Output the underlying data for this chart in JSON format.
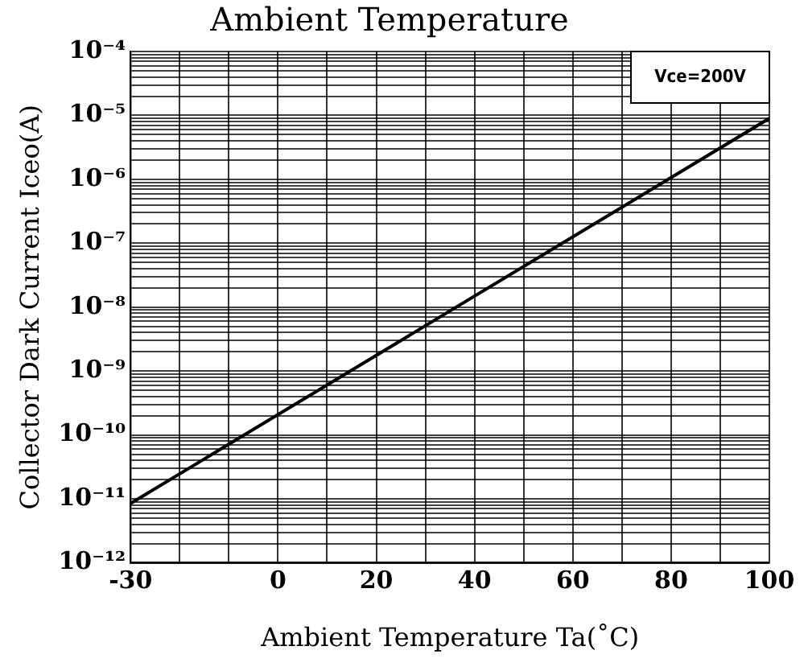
{
  "chart_data": {
    "type": "line",
    "title": "Ambient Temperature",
    "xlabel": "Ambient Temperature Ta(˚C)",
    "ylabel": "Collector Dark Current Iceo(A)",
    "annotations": [
      "Vce=200V"
    ],
    "x": [
      -30,
      100
    ],
    "series": [
      {
        "color": "#000000",
        "values": [
          8.5e-12,
          9e-06
        ]
      }
    ],
    "log": "y",
    "grid": true,
    "marker": "none",
    "line_style": "solid",
    "legend": false,
    "xlim": [
      -30,
      100
    ],
    "xticks": [
      -30,
      {
        "value": -20,
        "label": null
      },
      {
        "value": -10,
        "label": null
      },
      0,
      {
        "value": 10,
        "label": null
      },
      20,
      {
        "value": 30,
        "label": null
      },
      40,
      {
        "value": 50,
        "label": null
      },
      60,
      {
        "value": 70,
        "label": null
      },
      80,
      {
        "value": 90,
        "label": null
      },
      100
    ],
    "ylim": [
      1e-12,
      0.0001
    ],
    "yticks": [
      {
        "value": 1e-12,
        "label": "10⁻¹²"
      },
      {
        "value": 2e-12,
        "label": null
      },
      {
        "value": 3e-12,
        "label": null
      },
      {
        "value": 4e-12,
        "label": null
      },
      {
        "value": 5e-12,
        "label": null
      },
      {
        "value": 6e-12,
        "label": null
      },
      {
        "value": 7e-12,
        "label": null
      },
      {
        "value": 8e-12,
        "label": null
      },
      {
        "value": 9e-12,
        "label": null
      },
      {
        "value": 1e-11,
        "label": "10⁻¹¹"
      },
      {
        "value": 2e-11,
        "label": null
      },
      {
        "value": 3e-11,
        "label": null
      },
      {
        "value": 4e-11,
        "label": null
      },
      {
        "value": 5e-11,
        "label": null
      },
      {
        "value": 6e-11,
        "label": null
      },
      {
        "value": 7e-11,
        "label": null
      },
      {
        "value": 8e-11,
        "label": null
      },
      {
        "value": 9e-11,
        "label": null
      },
      {
        "value": 1e-10,
        "label": "10⁻¹⁰"
      },
      {
        "value": 2e-10,
        "label": null
      },
      {
        "value": 3e-10,
        "label": null
      },
      {
        "value": 4e-10,
        "label": null
      },
      {
        "value": 5e-10,
        "label": null
      },
      {
        "value": 6e-10,
        "label": null
      },
      {
        "value": 7e-10,
        "label": null
      },
      {
        "value": 8e-10,
        "label": null
      },
      {
        "value": 9e-10,
        "label": null
      },
      {
        "value": 1e-09,
        "label": "10⁻⁹"
      },
      {
        "value": 2e-09,
        "label": null
      },
      {
        "value": 3e-09,
        "label": null
      },
      {
        "value": 4e-09,
        "label": null
      },
      {
        "value": 5e-09,
        "label": null
      },
      {
        "value": 6e-09,
        "label": null
      },
      {
        "value": 7e-09,
        "label": null
      },
      {
        "value": 8e-09,
        "label": null
      },
      {
        "value": 9e-09,
        "label": null
      },
      {
        "value": 1e-08,
        "label": "10⁻⁸"
      },
      {
        "value": 2e-08,
        "label": null
      },
      {
        "value": 3e-08,
        "label": null
      },
      {
        "value": 4e-08,
        "label": null
      },
      {
        "value": 5e-08,
        "label": null
      },
      {
        "value": 6e-08,
        "label": null
      },
      {
        "value": 7e-08,
        "label": null
      },
      {
        "value": 8e-08,
        "label": null
      },
      {
        "value": 9e-08,
        "label": null
      },
      {
        "value": 1e-07,
        "label": "10⁻⁷"
      },
      {
        "value": 2e-07,
        "label": null
      },
      {
        "value": 3e-07,
        "label": null
      },
      {
        "value": 4e-07,
        "label": null
      },
      {
        "value": 5e-07,
        "label": null
      },
      {
        "value": 6e-07,
        "label": null
      },
      {
        "value": 7e-07,
        "label": null
      },
      {
        "value": 8e-07,
        "label": null
      },
      {
        "value": 9e-07,
        "label": null
      },
      {
        "value": 1e-06,
        "label": "10⁻⁶"
      },
      {
        "value": 2e-06,
        "label": null
      },
      {
        "value": 3e-06,
        "label": null
      },
      {
        "value": 4e-06,
        "label": null
      },
      {
        "value": 5e-06,
        "label": null
      },
      {
        "value": 6e-06,
        "label": null
      },
      {
        "value": 7e-06,
        "label": null
      },
      {
        "value": 8e-06,
        "label": null
      },
      {
        "value": 9e-06,
        "label": null
      },
      {
        "value": 1e-05,
        "label": "10⁻⁵"
      },
      {
        "value": 2e-05,
        "label": null
      },
      {
        "value": 3e-05,
        "label": null
      },
      {
        "value": 4e-05,
        "label": null
      },
      {
        "value": 5e-05,
        "label": null
      },
      {
        "value": 6e-05,
        "label": null
      },
      {
        "value": 7e-05,
        "label": null
      },
      {
        "value": 8e-05,
        "label": null
      },
      {
        "value": 9e-05,
        "label": null
      },
      {
        "value": 0.0001,
        "label": "10⁻⁴"
      }
    ]
  }
}
